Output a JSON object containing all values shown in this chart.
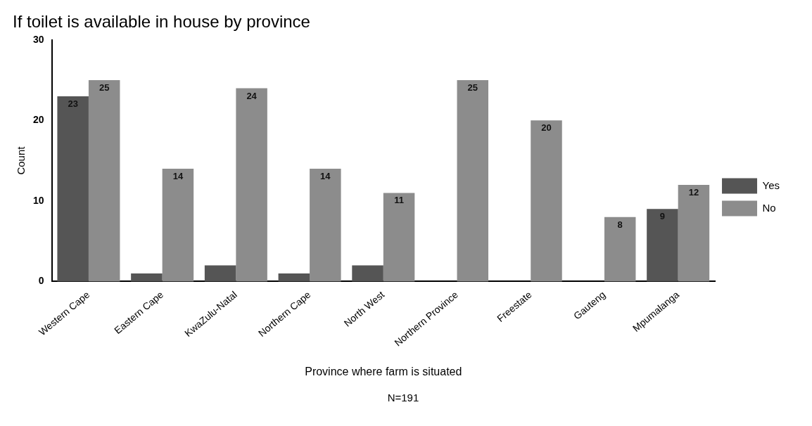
{
  "chart_data": {
    "type": "bar",
    "title": "If toilet is available in house by province",
    "xlabel": "Province where farm is situated",
    "ylabel": "Count",
    "categories": [
      "Western Cape",
      "Eastern Cape",
      "KwaZulu-Natal",
      "Northern Cape",
      "North West",
      "Northern Province",
      "Freestate",
      "Gauteng",
      "Mpumalanga"
    ],
    "series": [
      {
        "name": "Yes",
        "color": "#555555",
        "values": [
          23,
          1,
          2,
          1,
          2,
          null,
          null,
          null,
          9
        ],
        "value_labels": [
          "23",
          null,
          null,
          null,
          null,
          null,
          null,
          null,
          "9"
        ]
      },
      {
        "name": "No",
        "color": "#8c8c8c",
        "values": [
          25,
          14,
          24,
          14,
          11,
          25,
          20,
          8,
          12
        ],
        "value_labels": [
          "25",
          "14",
          "24",
          "14",
          "11",
          "25",
          "20",
          "8",
          "12"
        ]
      }
    ],
    "ylim": [
      0,
      30
    ],
    "yticks": [
      0,
      10,
      20,
      30
    ],
    "grid": false,
    "legend": "right",
    "annotations": [
      "N=191"
    ]
  }
}
